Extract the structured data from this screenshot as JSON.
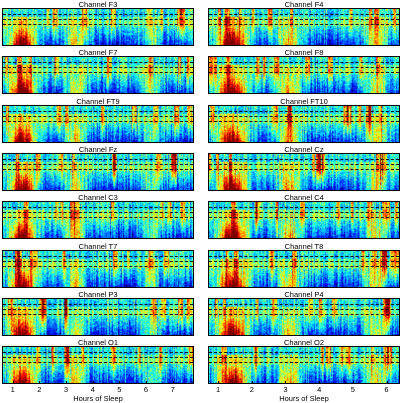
{
  "chart_data": [
    {
      "type": "heatmap",
      "panel": "left",
      "xlabel": "Hours of Sleep",
      "x_ticks": [
        "1",
        "2",
        "3",
        "4",
        "5",
        "6",
        "7"
      ],
      "xlim": [
        0.6,
        7.8
      ],
      "colormap": "jet",
      "dashed_reference_lines": 3,
      "channels": [
        "Channel F3",
        "Channel F7",
        "Channel FT9",
        "Channel Fz",
        "Channel C3",
        "Channel T7",
        "Channel P3",
        "Channel O1"
      ]
    },
    {
      "type": "heatmap",
      "panel": "right",
      "xlabel": "Hours of Sleep",
      "x_ticks": [
        "1",
        "2",
        "3",
        "4",
        "5",
        "6"
      ],
      "xlim": [
        0.7,
        6.4
      ],
      "colormap": "jet",
      "dashed_reference_lines": 3,
      "channels": [
        "Channel F4",
        "Channel F8",
        "Channel FT10",
        "Channel Cz",
        "Channel C4",
        "Channel T8",
        "Channel P4",
        "Channel O2"
      ]
    }
  ]
}
